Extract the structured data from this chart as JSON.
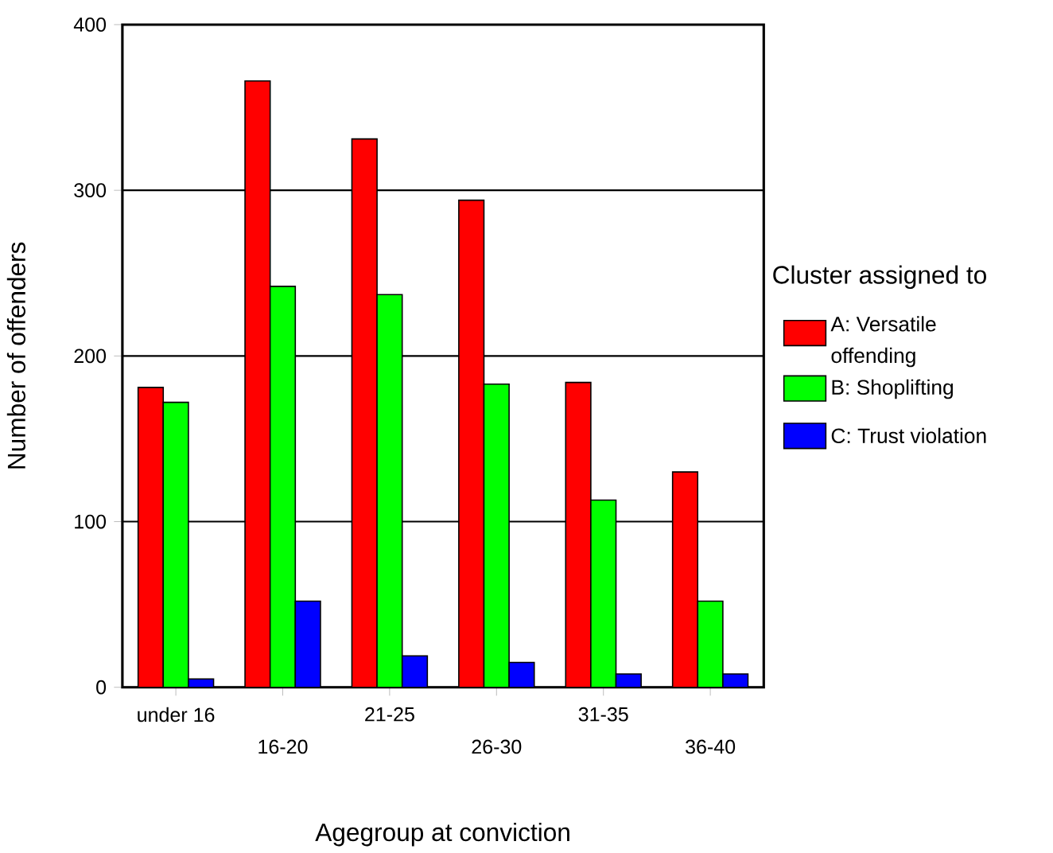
{
  "chart_data": {
    "type": "bar",
    "xlabel": "Agegroup at conviction",
    "ylabel": "Number of offenders",
    "legend_title": "Cluster assigned to",
    "categories": [
      "under 16",
      "16-20",
      "21-25",
      "26-30",
      "31-35",
      "36-40"
    ],
    "series": [
      {
        "name": "A: Versatile offending",
        "color": "#ff0000",
        "values": [
          181,
          366,
          331,
          294,
          184,
          130
        ]
      },
      {
        "name": "B: Shoplifting",
        "color": "#00ff00",
        "values": [
          172,
          242,
          237,
          183,
          113,
          52
        ]
      },
      {
        "name": "C: Trust violation",
        "color": "#0000ff",
        "values": [
          5,
          52,
          19,
          15,
          8,
          8
        ]
      }
    ],
    "ylim": [
      0,
      400
    ],
    "yticks": [
      0,
      100,
      200,
      300,
      400
    ],
    "grid": "y",
    "legend": "right"
  }
}
